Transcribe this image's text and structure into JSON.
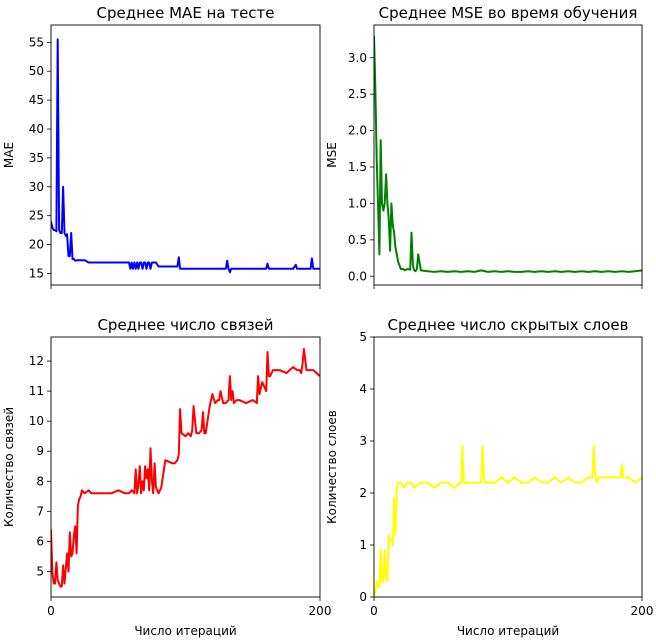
{
  "chart_data": [
    {
      "type": "line",
      "title": "Среднее MAE на тесте",
      "xlabel": "",
      "ylabel": "MAE",
      "xlim": [
        0,
        200
      ],
      "ylim": [
        13,
        58
      ],
      "yticks": [
        15,
        20,
        25,
        30,
        35,
        40,
        45,
        50,
        55
      ],
      "xticks": [
        0,
        200
      ],
      "show_xtick_labels": false,
      "color": "#0000ff",
      "series": [
        {
          "x": [
            0,
            1,
            2,
            3,
            4,
            5,
            6,
            7,
            8,
            9,
            10,
            11,
            12,
            13,
            14,
            15,
            16,
            17,
            18,
            20,
            22,
            25,
            28,
            30,
            35,
            40,
            45,
            50,
            55,
            58,
            59,
            60,
            61,
            62,
            63,
            64,
            65,
            66,
            67,
            68,
            69,
            70,
            71,
            72,
            73,
            74,
            75,
            76,
            77,
            78,
            80,
            85,
            90,
            94,
            95,
            96,
            100,
            110,
            120,
            125,
            130,
            131,
            132,
            133,
            134,
            135,
            140,
            150,
            160,
            161,
            162,
            170,
            180,
            182,
            183,
            184,
            190,
            193,
            194,
            195,
            196,
            197,
            200
          ],
          "y": [
            24,
            23,
            22.5,
            22.5,
            22.3,
            55.5,
            22.5,
            22,
            22,
            30,
            22,
            21.5,
            21.8,
            18,
            18,
            22,
            17.5,
            17.5,
            17.2,
            17.3,
            17.3,
            17.3,
            16.9,
            16.9,
            16.9,
            16.9,
            16.9,
            16.9,
            16.9,
            16.9,
            15.8,
            16.9,
            15.8,
            16.9,
            15.8,
            16.9,
            15.8,
            16.9,
            16.9,
            15.8,
            16.9,
            16.9,
            15.8,
            16.9,
            16.9,
            15.8,
            16.9,
            16.9,
            16.9,
            16.9,
            16.2,
            16.2,
            16.2,
            16.2,
            17.8,
            15.8,
            15.8,
            15.8,
            15.8,
            15.8,
            15.8,
            17.2,
            15.8,
            15.2,
            15.8,
            15.8,
            15.8,
            15.8,
            15.8,
            16.7,
            15.8,
            15.8,
            15.8,
            16.5,
            15.8,
            15.8,
            15.8,
            15.8,
            17.6,
            15.8,
            15.8,
            15.8,
            15.8
          ]
        }
      ]
    },
    {
      "type": "line",
      "title": "Среднее MSE во время обучения",
      "xlabel": "",
      "ylabel": "MSE",
      "xlim": [
        0,
        200
      ],
      "ylim": [
        -0.12,
        3.45
      ],
      "yticks": [
        0.0,
        0.5,
        1.0,
        1.5,
        2.0,
        2.5,
        3.0
      ],
      "xticks": [
        0,
        200
      ],
      "show_xtick_labels": false,
      "color": "#008000",
      "series": [
        {
          "x": [
            0,
            1,
            2,
            3,
            4,
            5,
            6,
            7,
            8,
            9,
            10,
            11,
            12,
            13,
            14,
            15,
            16,
            17,
            18,
            19,
            20,
            21,
            22,
            23,
            25,
            27,
            28,
            29,
            30,
            31,
            32,
            33,
            35,
            40,
            45,
            50,
            55,
            60,
            65,
            70,
            75,
            80,
            85,
            90,
            95,
            100,
            105,
            110,
            115,
            120,
            125,
            130,
            135,
            140,
            145,
            150,
            155,
            160,
            165,
            170,
            175,
            180,
            185,
            190,
            195,
            200
          ],
          "y": [
            3.3,
            2.6,
            1.6,
            1.0,
            0.3,
            1.87,
            1.0,
            0.9,
            1.0,
            1.4,
            1.0,
            0.8,
            0.35,
            1.0,
            0.7,
            0.6,
            0.4,
            0.3,
            0.2,
            0.15,
            0.1,
            0.1,
            0.1,
            0.08,
            0.1,
            0.09,
            0.6,
            0.15,
            0.08,
            0.07,
            0.1,
            0.3,
            0.08,
            0.07,
            0.06,
            0.07,
            0.06,
            0.07,
            0.06,
            0.07,
            0.06,
            0.08,
            0.06,
            0.07,
            0.06,
            0.07,
            0.06,
            0.06,
            0.07,
            0.06,
            0.07,
            0.06,
            0.07,
            0.06,
            0.07,
            0.06,
            0.07,
            0.06,
            0.07,
            0.06,
            0.07,
            0.06,
            0.07,
            0.06,
            0.07,
            0.08
          ]
        }
      ]
    },
    {
      "type": "line",
      "title": "Среднее число связей",
      "xlabel": "Число итераций",
      "ylabel": "Количество связей",
      "xlim": [
        0,
        200
      ],
      "ylim": [
        4.15,
        12.8
      ],
      "yticks": [
        5,
        6,
        7,
        8,
        9,
        10,
        11,
        12
      ],
      "xticks": [
        0,
        200
      ],
      "show_xtick_labels": true,
      "color": "#ff0000",
      "series": [
        {
          "x": [
            0,
            1,
            2,
            3,
            4,
            5,
            6,
            7,
            8,
            9,
            10,
            11,
            12,
            13,
            14,
            15,
            16,
            17,
            18,
            19,
            20,
            21,
            22,
            23,
            25,
            28,
            30,
            35,
            40,
            45,
            50,
            55,
            58,
            60,
            62,
            63,
            64,
            65,
            66,
            67,
            68,
            69,
            70,
            71,
            72,
            73,
            74,
            75,
            76,
            77,
            78,
            80,
            82,
            85,
            90,
            92,
            94,
            95,
            96,
            97,
            100,
            102,
            104,
            105,
            106,
            108,
            110,
            112,
            113,
            114,
            115,
            118,
            120,
            122,
            124,
            125,
            126,
            128,
            130,
            132,
            133,
            134,
            135,
            136,
            138,
            140,
            145,
            150,
            153,
            154,
            155,
            157,
            160,
            161,
            162,
            163,
            165,
            170,
            175,
            180,
            183,
            185,
            186,
            187,
            188,
            190,
            195,
            200
          ],
          "y": [
            6.4,
            5.0,
            4.6,
            4.6,
            5.3,
            4.7,
            4.6,
            4.5,
            4.5,
            5.2,
            4.6,
            5.1,
            5.6,
            5.0,
            6.3,
            5.5,
            5.6,
            6.2,
            6.5,
            5.6,
            7.2,
            7.4,
            7.5,
            7.7,
            7.6,
            7.7,
            7.6,
            7.6,
            7.6,
            7.6,
            7.7,
            7.6,
            7.6,
            7.7,
            7.6,
            8.4,
            7.6,
            7.9,
            8.5,
            7.6,
            8.0,
            7.7,
            8.5,
            8.1,
            8.4,
            7.7,
            9.1,
            8.0,
            7.6,
            8.6,
            7.8,
            7.6,
            7.8,
            8.7,
            8.6,
            8.6,
            8.7,
            8.9,
            10.4,
            9.6,
            9.5,
            9.6,
            9.5,
            9.7,
            10.5,
            9.6,
            9.6,
            9.7,
            10.3,
            9.6,
            9.6,
            10.5,
            10.9,
            10.6,
            10.7,
            10.7,
            11.0,
            10.6,
            10.6,
            10.7,
            11.5,
            10.7,
            11.0,
            10.6,
            10.7,
            10.7,
            10.6,
            10.7,
            10.6,
            11.5,
            10.9,
            11.3,
            11.0,
            12.3,
            11.5,
            11.5,
            11.7,
            11.7,
            11.6,
            11.8,
            11.7,
            11.7,
            11.6,
            11.9,
            12.4,
            11.7,
            11.7,
            11.5
          ]
        }
      ]
    },
    {
      "type": "line",
      "title": "Среднее число скрытых слоев",
      "xlabel": "Число итераций",
      "ylabel": "Количество слоев",
      "xlim": [
        0,
        200
      ],
      "ylim": [
        0,
        5
      ],
      "yticks": [
        0,
        1,
        2,
        3,
        4,
        5
      ],
      "xticks": [
        0,
        200
      ],
      "show_xtick_labels": true,
      "color": "#ffff00",
      "series": [
        {
          "x": [
            0,
            1,
            2,
            3,
            4,
            5,
            6,
            7,
            8,
            9,
            10,
            11,
            12,
            13,
            14,
            15,
            16,
            17,
            18,
            20,
            22,
            25,
            28,
            30,
            35,
            40,
            45,
            50,
            55,
            60,
            65,
            66,
            67,
            68,
            70,
            75,
            80,
            81,
            82,
            83,
            85,
            90,
            95,
            100,
            105,
            110,
            115,
            120,
            125,
            130,
            135,
            140,
            145,
            150,
            155,
            160,
            163,
            164,
            165,
            166,
            168,
            170,
            175,
            180,
            184,
            185,
            186,
            190,
            195,
            200
          ],
          "y": [
            0,
            0.1,
            0.3,
            0.2,
            0.2,
            0.9,
            0.3,
            0.3,
            0.9,
            0.4,
            0.3,
            1.2,
            1.1,
            1.1,
            1.0,
            1.9,
            1.2,
            2.1,
            2.2,
            2.2,
            2.1,
            2.2,
            2.2,
            2.1,
            2.2,
            2.2,
            2.1,
            2.2,
            2.2,
            2.1,
            2.2,
            2.9,
            2.2,
            2.2,
            2.2,
            2.2,
            2.2,
            2.9,
            2.3,
            2.2,
            2.2,
            2.2,
            2.3,
            2.2,
            2.3,
            2.2,
            2.2,
            2.3,
            2.2,
            2.2,
            2.3,
            2.2,
            2.3,
            2.2,
            2.2,
            2.3,
            2.3,
            2.9,
            2.4,
            2.2,
            2.3,
            2.3,
            2.3,
            2.3,
            2.3,
            2.55,
            2.3,
            2.3,
            2.2,
            2.3
          ]
        }
      ]
    }
  ]
}
